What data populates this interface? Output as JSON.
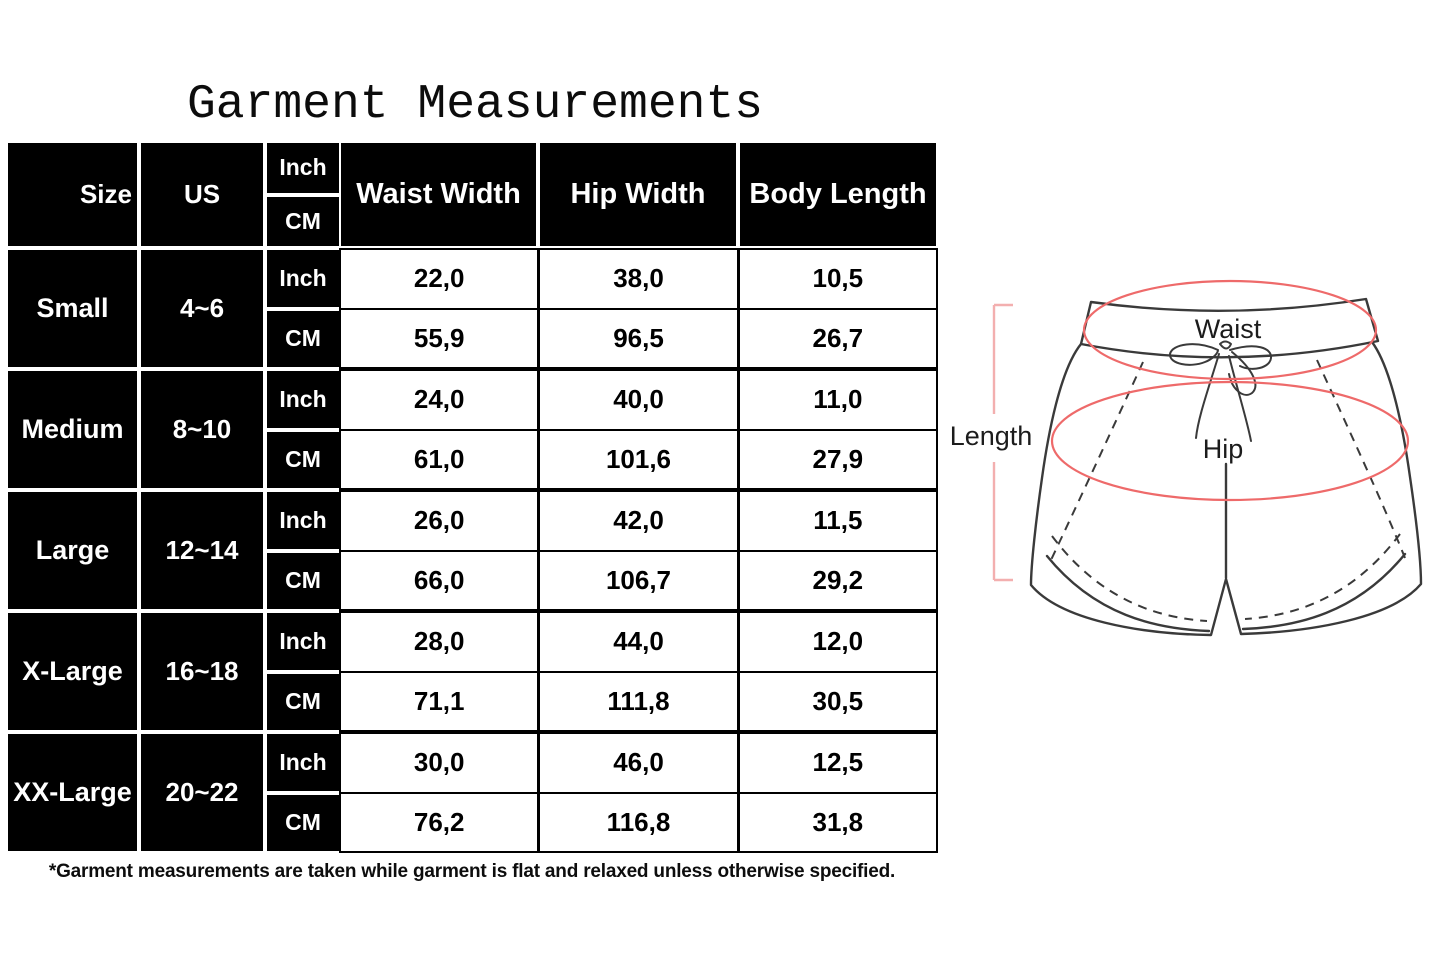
{
  "title": "Garment Measurements",
  "footnote": "*Garment measurements are taken while garment is flat and relaxed unless otherwise specified.",
  "table": {
    "header": {
      "size": "Size",
      "us": "US",
      "waist": "Waist Width",
      "hip": "Hip Width",
      "body": "Body Length"
    },
    "unit_labels": [
      "Inch",
      "CM"
    ],
    "groups": [
      {
        "size": "Small",
        "us": "4~6",
        "rows": [
          [
            "22,0",
            "38,0",
            "10,5"
          ],
          [
            "55,9",
            "96,5",
            "26,7"
          ]
        ]
      },
      {
        "size": "Medium",
        "us": "8~10",
        "rows": [
          [
            "24,0",
            "40,0",
            "11,0"
          ],
          [
            "61,0",
            "101,6",
            "27,9"
          ]
        ]
      },
      {
        "size": "Large",
        "us": "12~14",
        "rows": [
          [
            "26,0",
            "42,0",
            "11,5"
          ],
          [
            "66,0",
            "106,7",
            "29,2"
          ]
        ]
      },
      {
        "size": "X-Large",
        "us": "16~18",
        "rows": [
          [
            "28,0",
            "44,0",
            "12,0"
          ],
          [
            "71,1",
            "111,8",
            "30,5"
          ]
        ]
      },
      {
        "size": "XX-Large",
        "us": "20~22",
        "rows": [
          [
            "30,0",
            "46,0",
            "12,5"
          ],
          [
            "76,2",
            "116,8",
            "31,8"
          ]
        ]
      }
    ]
  },
  "chart_data": {
    "type": "table",
    "title": "Garment Measurements",
    "columns": [
      "Size",
      "US",
      "Unit",
      "Waist Width",
      "Hip Width",
      "Body Length"
    ],
    "rows": [
      [
        "Small",
        "4~6",
        "Inch",
        "22,0",
        "38,0",
        "10,5"
      ],
      [
        "Small",
        "4~6",
        "CM",
        "55,9",
        "96,5",
        "26,7"
      ],
      [
        "Medium",
        "8~10",
        "Inch",
        "24,0",
        "40,0",
        "11,0"
      ],
      [
        "Medium",
        "8~10",
        "CM",
        "61,0",
        "101,6",
        "27,9"
      ],
      [
        "Large",
        "12~14",
        "Inch",
        "26,0",
        "42,0",
        "11,5"
      ],
      [
        "Large",
        "12~14",
        "CM",
        "66,0",
        "106,7",
        "29,2"
      ],
      [
        "X-Large",
        "16~18",
        "Inch",
        "28,0",
        "44,0",
        "12,0"
      ],
      [
        "X-Large",
        "16~18",
        "CM",
        "71,1",
        "111,8",
        "30,5"
      ],
      [
        "XX-Large",
        "20~22",
        "Inch",
        "30,0",
        "46,0",
        "12,5"
      ],
      [
        "XX-Large",
        "20~22",
        "CM",
        "76,2",
        "116,8",
        "31,8"
      ]
    ]
  },
  "diagram": {
    "length_label": "Length",
    "waist_label": "Waist",
    "hip_label": "Hip",
    "colors": {
      "ellipse_red": "#ee6a6a",
      "bracket_pink": "#f3afaf",
      "line_gray": "#3a3a3a",
      "cell_black": "#000000"
    }
  }
}
